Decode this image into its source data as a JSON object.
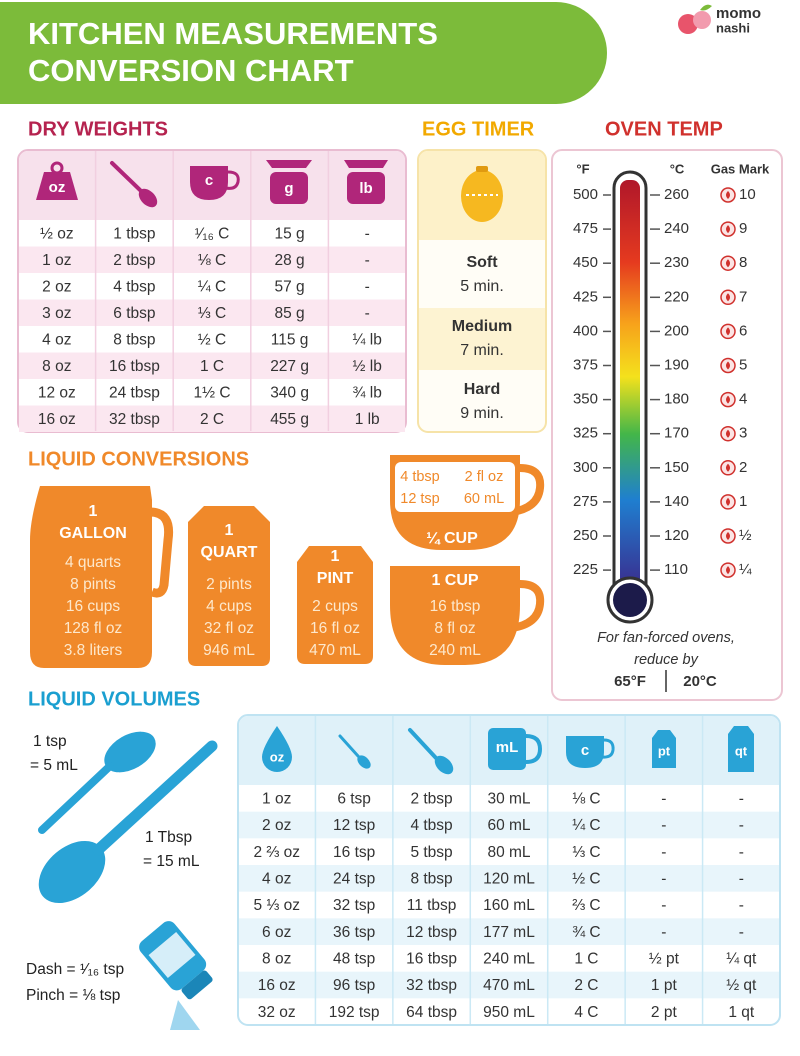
{
  "header": {
    "title_line1": "KITCHEN MEASUREMENTS",
    "title_line2": "CONVERSION CHART",
    "brand_line1": "momo",
    "brand_line2": "nashi"
  },
  "dry_weights": {
    "title": "DRY WEIGHTS",
    "icon_labels": [
      "oz",
      "c",
      "g",
      "lb"
    ],
    "rows": [
      [
        "½ oz",
        "1 tbsp",
        "¹⁄₁₆ C",
        "15 g",
        "-"
      ],
      [
        "1 oz",
        "2 tbsp",
        "⅛ C",
        "28 g",
        "-"
      ],
      [
        "2 oz",
        "4 tbsp",
        "¼ C",
        "57 g",
        "-"
      ],
      [
        "3 oz",
        "6 tbsp",
        "⅓ C",
        "85 g",
        "-"
      ],
      [
        "4 oz",
        "8 tbsp",
        "½ C",
        "115 g",
        "¼ lb"
      ],
      [
        "8 oz",
        "16 tbsp",
        "1 C",
        "227 g",
        "½ lb"
      ],
      [
        "12 oz",
        "24 tbsp",
        "1½ C",
        "340 g",
        "¾ lb"
      ],
      [
        "16 oz",
        "32 tbsp",
        "2 C",
        "455 g",
        "1 lb"
      ]
    ]
  },
  "egg_timer": {
    "title": "EGG TIMER",
    "items": [
      {
        "label": "Soft",
        "time": "5 min."
      },
      {
        "label": "Medium",
        "time": "7 min."
      },
      {
        "label": "Hard",
        "time": "9 min."
      }
    ]
  },
  "oven_temp": {
    "title": "OVEN TEMP",
    "headers": [
      "°F",
      "°C",
      "Gas Mark"
    ],
    "rows": [
      [
        "500",
        "260",
        "10"
      ],
      [
        "475",
        "240",
        "9"
      ],
      [
        "450",
        "230",
        "8"
      ],
      [
        "425",
        "220",
        "7"
      ],
      [
        "400",
        "200",
        "6"
      ],
      [
        "375",
        "190",
        "5"
      ],
      [
        "350",
        "180",
        "4"
      ],
      [
        "325",
        "170",
        "3"
      ],
      [
        "300",
        "150",
        "2"
      ],
      [
        "275",
        "140",
        "1"
      ],
      [
        "250",
        "120",
        "½"
      ],
      [
        "225",
        "110",
        "¼"
      ]
    ],
    "note_line1": "For fan-forced ovens,",
    "note_line2": "reduce by",
    "note_f": "65°F",
    "note_c": "20°C"
  },
  "liquid_conversions": {
    "title": "LIQUID CONVERSIONS",
    "containers": [
      {
        "count": "1",
        "unit": "GALLON",
        "lines": [
          "4 quarts",
          "8 pints",
          "16 cups",
          "128 fl oz",
          "3.8 liters"
        ]
      },
      {
        "count": "1",
        "unit": "QUART",
        "lines": [
          "2 pints",
          "4 cups",
          "32 fl oz",
          "946 mL"
        ]
      },
      {
        "count": "1",
        "unit": "PINT",
        "lines": [
          "2 cups",
          "16 fl oz",
          "470 mL"
        ]
      }
    ],
    "cup": {
      "label": "1 CUP",
      "lines": [
        "16 tbsp",
        "8 fl oz",
        "240 mL"
      ]
    },
    "quarter_cup": {
      "label": "¼ CUP",
      "rows": [
        [
          "4 tbsp",
          "2 fl oz"
        ],
        [
          "12 tsp",
          "60 mL"
        ]
      ]
    }
  },
  "liquid_volumes": {
    "title": "LIQUID VOLUMES",
    "tsp": {
      "label": "1 tsp",
      "equals": "= 5 mL"
    },
    "tbsp": {
      "label": "1 Tbsp",
      "equals": "= 15 mL"
    },
    "dash": "Dash = ¹⁄₁₆ tsp",
    "pinch": "Pinch = ⅛ tsp",
    "icon_labels": [
      "oz",
      "mL",
      "c",
      "pt",
      "qt"
    ],
    "rows": [
      [
        "1 oz",
        "6 tsp",
        "2 tbsp",
        "30 mL",
        "⅛ C",
        "-",
        "-"
      ],
      [
        "2 oz",
        "12 tsp",
        "4 tbsp",
        "60 mL",
        "¼ C",
        "-",
        "-"
      ],
      [
        "2 ⅔ oz",
        "16 tsp",
        "5 tbsp",
        "80 mL",
        "⅓ C",
        "-",
        "-"
      ],
      [
        "4 oz",
        "24 tsp",
        "8 tbsp",
        "120 mL",
        "½ C",
        "-",
        "-"
      ],
      [
        "5 ⅓ oz",
        "32 tsp",
        "11 tbsp",
        "160 mL",
        "⅔ C",
        "-",
        "-"
      ],
      [
        "6 oz",
        "36 tsp",
        "12 tbsp",
        "177 mL",
        "¾ C",
        "-",
        "-"
      ],
      [
        "8 oz",
        "48 tsp",
        "16 tbsp",
        "240 mL",
        "1 C",
        "½ pt",
        "¼ qt"
      ],
      [
        "16 oz",
        "96 tsp",
        "32 tbsp",
        "470 mL",
        "2 C",
        "1 pt",
        "½ qt"
      ],
      [
        "32 oz",
        "192 tsp",
        "64 tbsp",
        "950 mL",
        "4 C",
        "2 pt",
        "1 qt"
      ]
    ]
  }
}
